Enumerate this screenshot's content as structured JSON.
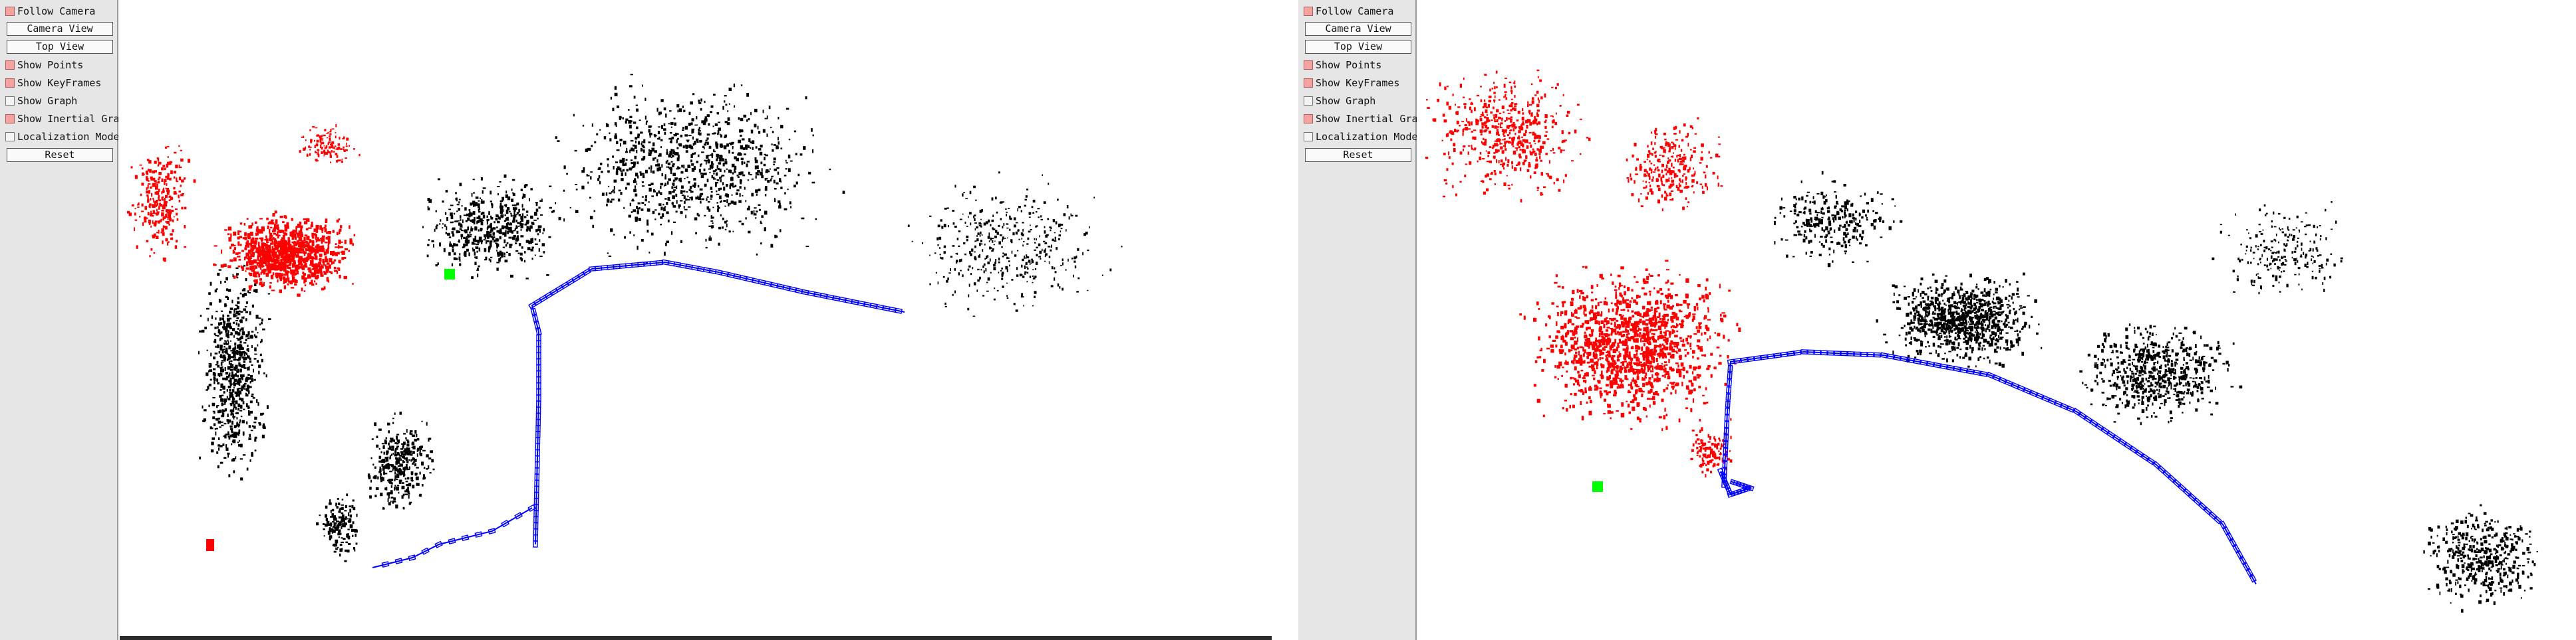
{
  "colors": {
    "panel_bg": "#e6e6e6",
    "checkbox_on": "#f4a3a3",
    "map_points_active": "#ff0000",
    "map_points": "#000000",
    "keyframes": "#0000ff",
    "current_camera": "#00ff00"
  },
  "viewers": [
    {
      "menu": {
        "follow_camera": {
          "label": "Follow Camera",
          "checked": true
        },
        "camera_view": "Camera View",
        "top_view": "Top View",
        "show_points": {
          "label": "Show Points",
          "checked": true
        },
        "show_keyframes": {
          "label": "Show KeyFrames",
          "checked": true
        },
        "show_graph": {
          "label": "Show Graph",
          "checked": false
        },
        "show_inertial_graph": {
          "label": "Show Inertial Graph",
          "checked": true
        },
        "localization_mode": {
          "label": "Localization Mode",
          "checked": false
        },
        "reset": "Reset"
      }
    },
    {
      "menu": {
        "follow_camera": {
          "label": "Follow Camera",
          "checked": true
        },
        "camera_view": "Camera View",
        "top_view": "Top View",
        "show_points": {
          "label": "Show Points",
          "checked": true
        },
        "show_keyframes": {
          "label": "Show KeyFrames",
          "checked": true
        },
        "show_graph": {
          "label": "Show Graph",
          "checked": false
        },
        "show_inertial_graph": {
          "label": "Show Inertial Graph",
          "checked": true
        },
        "localization_mode": {
          "label": "Localization Mode",
          "checked": false
        },
        "reset": "Reset"
      }
    }
  ]
}
